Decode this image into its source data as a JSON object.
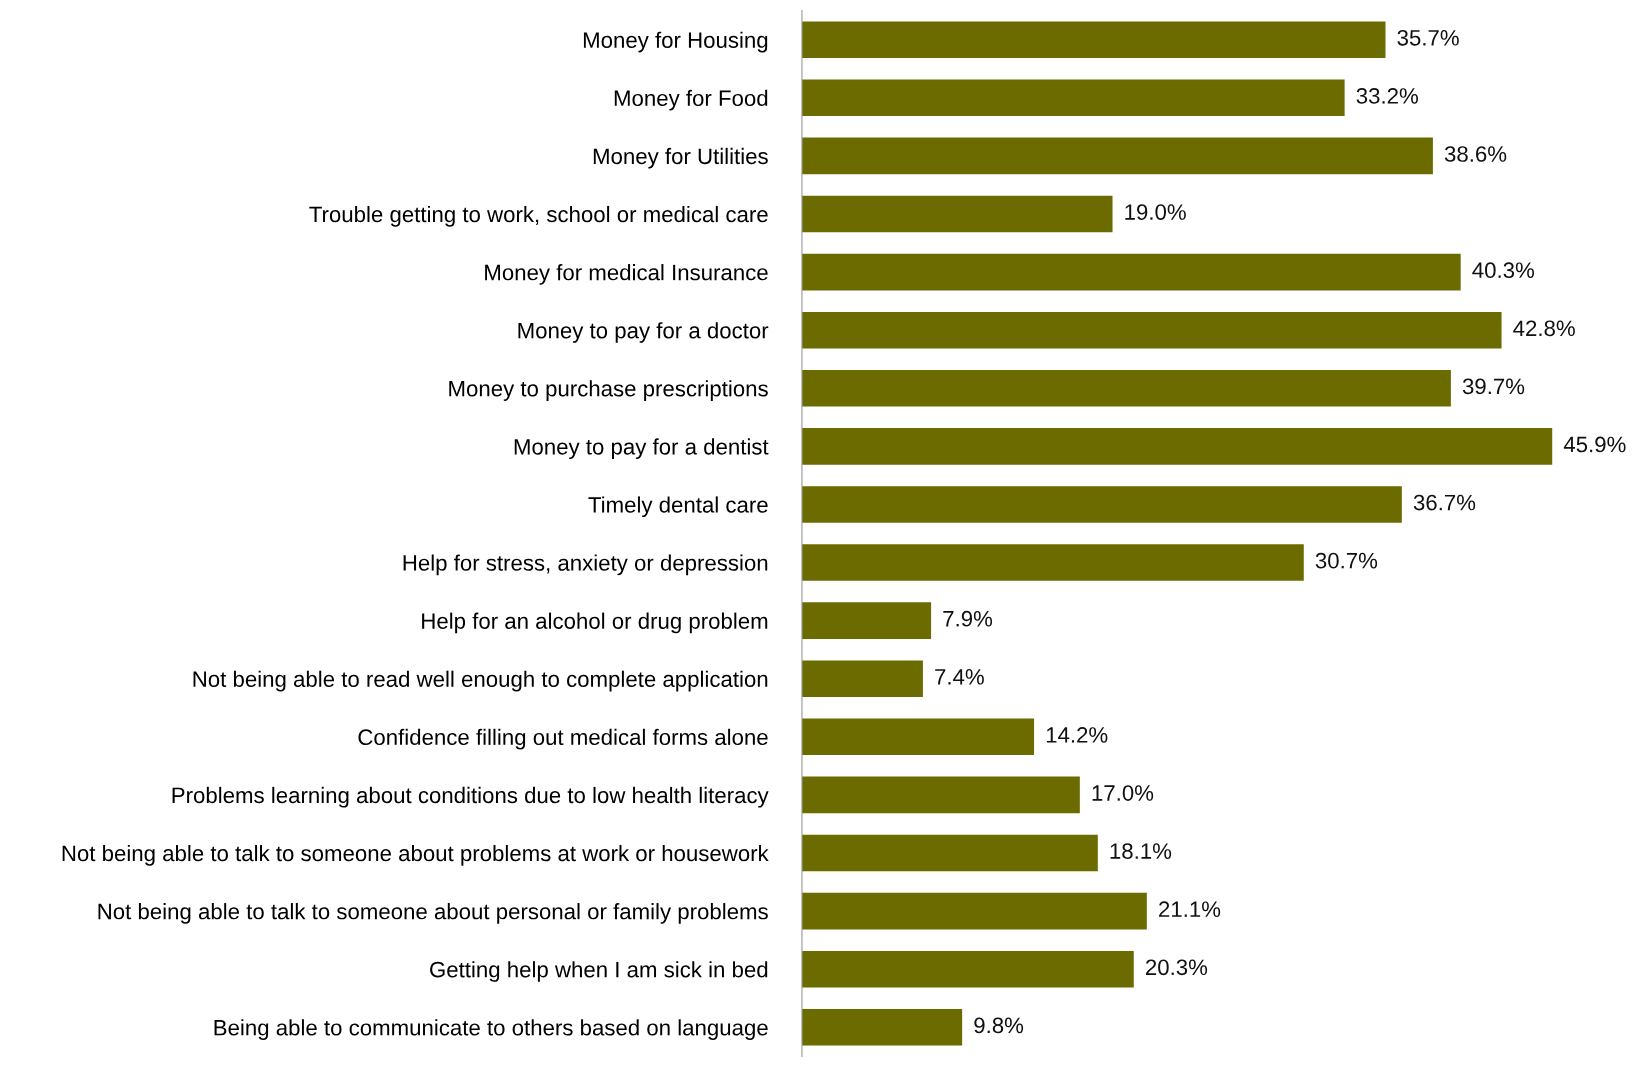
{
  "chart_data": {
    "type": "bar",
    "orientation": "horizontal",
    "tick_labels": "y",
    "grid": false,
    "legend": false,
    "categories": [
      "Money for Housing",
      "Money for Food",
      "Money for Utilities",
      "Trouble getting to work, school or medical care",
      "Money for medical Insurance",
      "Money to pay for a doctor",
      "Money to purchase prescriptions",
      "Money to pay for a dentist",
      "Timely dental care",
      "Help for stress, anxiety or depression",
      "Help for an alcohol or drug problem",
      "Not being able to read well enough to complete application",
      "Confidence filling out medical forms alone",
      "Problems learning about conditions due to low health literacy",
      "Not being able to talk to someone about problems at work or housework",
      "Not being able to talk to someone about personal or family problems",
      "Getting help when I am sick in bed",
      "Being able to communicate to others based on language"
    ],
    "values": [
      35.7,
      33.2,
      38.6,
      19.0,
      40.3,
      42.8,
      39.7,
      45.9,
      36.7,
      30.7,
      7.9,
      7.4,
      14.2,
      17.0,
      18.1,
      21.1,
      20.3,
      9.8
    ],
    "value_labels": [
      "35.7%",
      "33.2%",
      "38.6%",
      "19.0%",
      "40.3%",
      "42.8%",
      "39.7%",
      "45.9%",
      "36.7%",
      "30.7%",
      "7.9%",
      "7.4%",
      "14.2%",
      "17.0%",
      "18.1%",
      "21.1%",
      "20.3%",
      "9.8%"
    ],
    "color": "#6b6b00"
  }
}
